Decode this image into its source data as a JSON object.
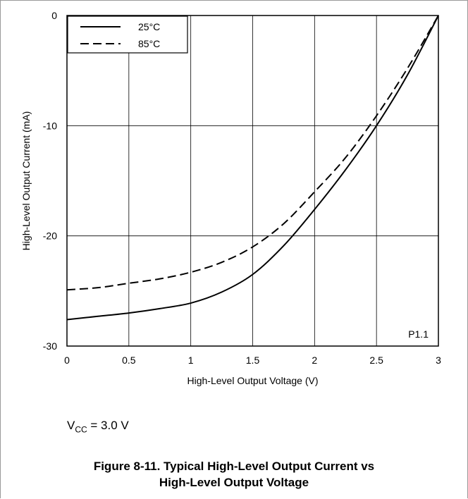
{
  "chart_data": {
    "type": "line",
    "title": "",
    "xlabel": "High-Level Output Voltage (V)",
    "ylabel": "High-Level Output Current (mA)",
    "xlim": [
      0,
      3
    ],
    "ylim": [
      -30,
      0
    ],
    "xticks": [
      "0",
      "0.5",
      "1",
      "1.5",
      "2",
      "2.5",
      "3"
    ],
    "yticks": [
      "0",
      "-10",
      "-20",
      "-30"
    ],
    "grid": true,
    "legend_position": "top-left",
    "annotation": "P1.1",
    "series": [
      {
        "name": "25°C",
        "style": "solid",
        "color": "#000000",
        "x": [
          0,
          0.25,
          0.5,
          0.75,
          1.0,
          1.25,
          1.5,
          1.75,
          2.0,
          2.25,
          2.5,
          2.75,
          3.0
        ],
        "y": [
          -27.6,
          -27.3,
          -27.0,
          -26.6,
          -26.1,
          -25.1,
          -23.5,
          -20.9,
          -17.6,
          -14.0,
          -10.0,
          -5.4,
          0
        ]
      },
      {
        "name": "85°C",
        "style": "dashed",
        "color": "#000000",
        "x": [
          0,
          0.25,
          0.5,
          0.75,
          1.0,
          1.25,
          1.5,
          1.75,
          2.0,
          2.25,
          2.5,
          2.75,
          3.0
        ],
        "y": [
          -24.9,
          -24.7,
          -24.3,
          -23.9,
          -23.3,
          -22.4,
          -21.0,
          -18.9,
          -16.0,
          -12.9,
          -9.1,
          -4.8,
          0
        ]
      }
    ]
  },
  "conditions": {
    "vcc_symbol": "V",
    "vcc_subscript": "CC",
    "vcc_value": " = 3.0 V"
  },
  "caption": {
    "line1": "Figure 8-11. Typical High-Level Output Current vs",
    "line2": "High-Level Output Voltage"
  }
}
